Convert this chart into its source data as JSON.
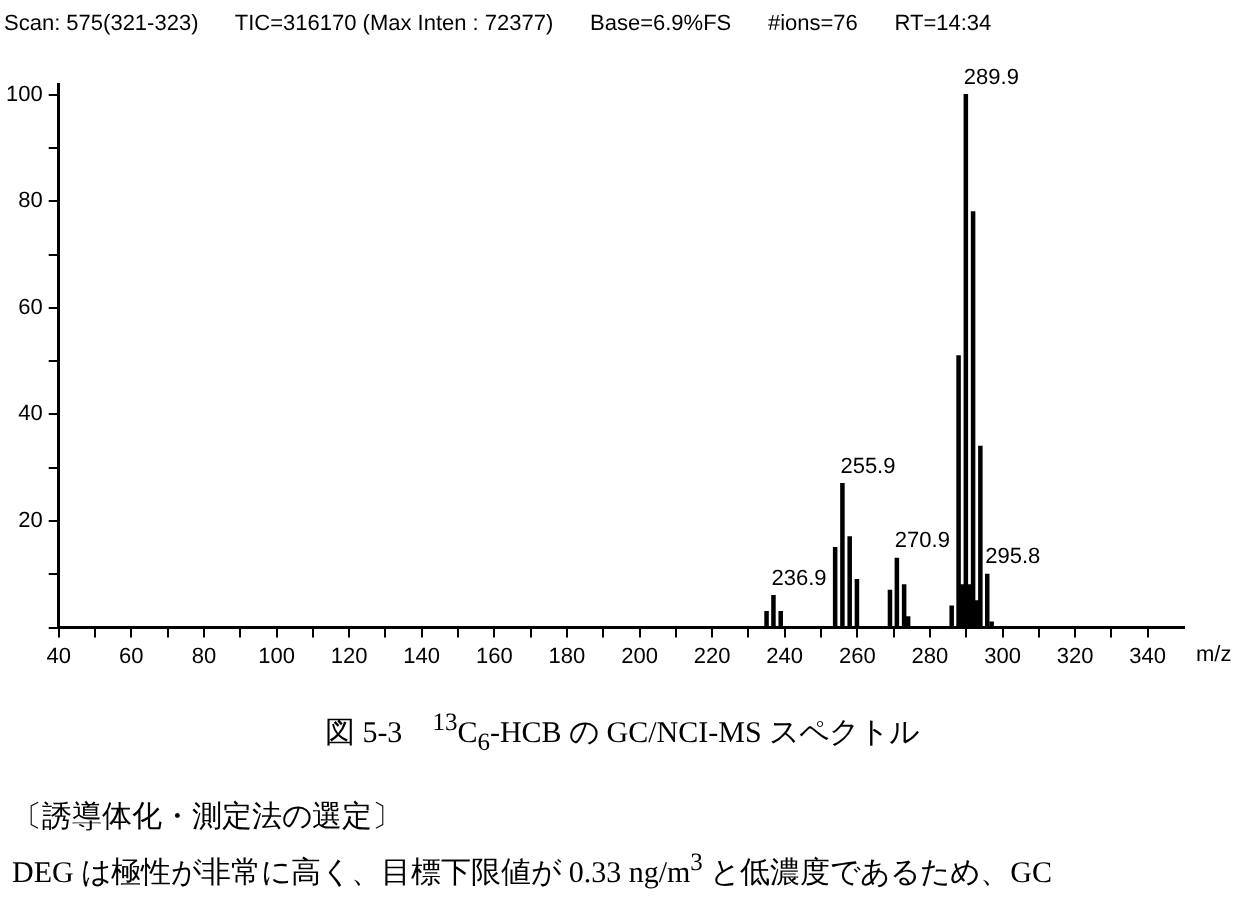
{
  "chart_data": {
    "type": "bar",
    "x": [
      235,
      236.9,
      238.9,
      253.9,
      255.9,
      257.9,
      259.9,
      269,
      270.9,
      272.9,
      274,
      286,
      287.9,
      288.9,
      289.9,
      290.9,
      291.9,
      292.9,
      293.9,
      295.8,
      297
    ],
    "values": [
      3,
      6,
      3,
      15,
      27,
      17,
      9,
      7,
      13,
      8,
      2,
      4,
      51,
      8,
      100,
      8,
      78,
      5,
      34,
      10,
      1
    ],
    "color": "#000000",
    "xlim": [
      40,
      350
    ],
    "xticks": [
      40,
      {
        "value": 50,
        "label": null
      },
      60,
      {
        "value": 70,
        "label": null
      },
      80,
      {
        "value": 90,
        "label": null
      },
      100,
      {
        "value": 110,
        "label": null
      },
      120,
      {
        "value": 130,
        "label": null
      },
      140,
      {
        "value": 150,
        "label": null
      },
      160,
      {
        "value": 170,
        "label": null
      },
      180,
      {
        "value": 190,
        "label": null
      },
      200,
      {
        "value": 210,
        "label": null
      },
      220,
      {
        "value": 230,
        "label": null
      },
      240,
      {
        "value": 250,
        "label": null
      },
      260,
      {
        "value": 270,
        "label": null
      },
      280,
      {
        "value": 290,
        "label": null
      },
      300,
      {
        "value": 310,
        "label": null
      },
      320,
      {
        "value": 330,
        "label": null
      },
      340
    ],
    "ylim": [
      0,
      102
    ],
    "yticks": [
      {
        "value": 0,
        "label": null
      },
      {
        "value": 10,
        "label": null
      },
      20,
      {
        "value": 30,
        "label": null
      },
      40,
      {
        "value": 50,
        "label": null
      },
      60,
      {
        "value": 70,
        "label": null
      },
      80,
      {
        "value": 90,
        "label": null
      },
      100
    ],
    "xlabel": "m/z",
    "grid": false,
    "legend": false,
    "annotations": [
      "Scan: 575(321-323)      TIC=316170 (Max Inten : 72377)      Base=6.9%FS      #ions=76      RT=14:34",
      "図 5-3　$^{13}$C$_{6}$-HCB の GC/NCI-MS スペクトル",
      "〔誘導体化・測定法の選定〕",
      "DEG は極性が非常に高く、目標下限値が 0.33 ng/m$^{3}$ と低濃度であるため、GC",
      {
        "text": "236.9",
        "x": 236.9,
        "y": 6
      },
      {
        "text": "255.9",
        "x": 255.9,
        "y": 27
      },
      {
        "text": "270.9",
        "x": 270.9,
        "y": 13
      },
      {
        "text": "289.9",
        "x": 289.9,
        "y": 100
      },
      {
        "text": "295.8",
        "x": 295.8,
        "y": 10
      }
    ]
  }
}
